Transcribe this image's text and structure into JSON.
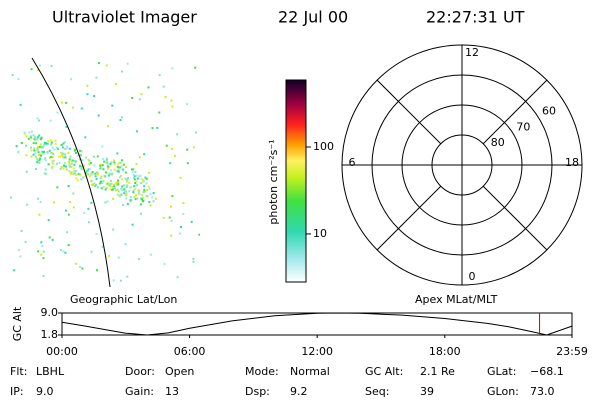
{
  "header": {
    "title": "Ultraviolet Imager",
    "date": "22 Jul 00",
    "time": "22:27:31 UT"
  },
  "left_panel": {
    "label": "Geographic Lat/Lon"
  },
  "colorbar": {
    "label": "photon cm⁻²s⁻¹",
    "log": true,
    "range": [
      2.8,
      590
    ],
    "ticks": [
      10,
      100
    ]
  },
  "polar": {
    "label": "Apex MLat/MLT",
    "lat_range": [
      50,
      90
    ],
    "lat_ticks": [
      60,
      70,
      80
    ],
    "mlt_ticks": [
      12,
      18,
      6,
      0
    ]
  },
  "alt_plot": {
    "ylabel": "GC Alt",
    "ylim": [
      1.8,
      9.0
    ],
    "yticks": [
      {
        "value": 9.0,
        "label": "9.0"
      },
      1.8
    ],
    "xlim": [
      0,
      23.983
    ],
    "xticks": [
      {
        "value": 0,
        "label": "00:00"
      },
      {
        "value": 6,
        "label": "06:00"
      },
      {
        "value": 12,
        "label": "12:00"
      },
      {
        "value": 18,
        "label": "18:00"
      },
      {
        "value": 23.983,
        "label": "23:59"
      }
    ],
    "x": [
      0,
      1,
      2,
      3,
      4,
      5,
      6,
      8,
      10,
      12,
      13,
      14,
      16,
      18,
      20,
      21,
      22,
      22.8,
      23.983
    ],
    "values": [
      6.0,
      4.8,
      3.6,
      2.4,
      1.8,
      2.5,
      4.0,
      6.4,
      8.1,
      8.9,
      9.0,
      8.9,
      8.3,
      7.2,
      5.6,
      4.5,
      3.0,
      1.8,
      4.7
    ],
    "current_time": 22.458,
    "current_color": "#cc0000"
  },
  "info": [
    [
      {
        "label": "Flt:",
        "value": "LBHL"
      },
      {
        "label": "Door:",
        "value": "Open"
      },
      {
        "label": "Mode:",
        "value": "Normal"
      },
      {
        "label": "GC Alt:",
        "value": "2.1 Re"
      },
      {
        "label": "GLat:",
        "value": "−68.1"
      }
    ],
    [
      {
        "label": "IP:",
        "value": "9.0"
      },
      {
        "label": "Gain:",
        "value": "13"
      },
      {
        "label": "Dsp:",
        "value": "9.2"
      },
      {
        "label": "Seq:",
        "value": "39"
      },
      {
        "label": "GLon:",
        "value": "73.0"
      }
    ]
  ]
}
